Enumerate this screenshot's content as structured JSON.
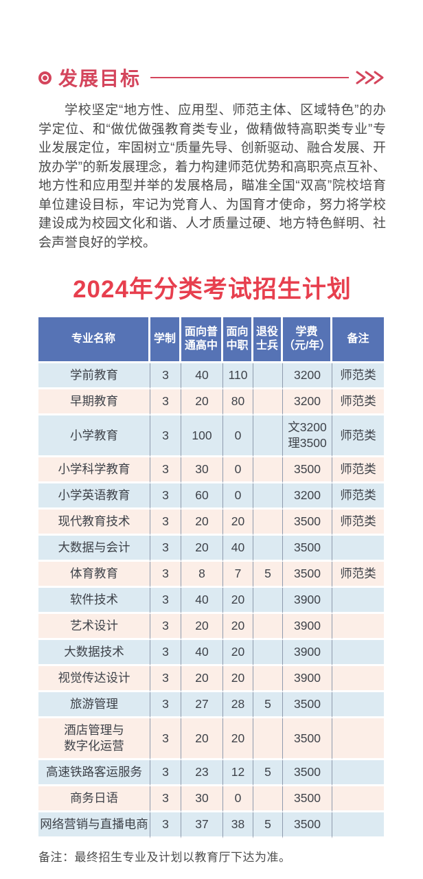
{
  "page": {
    "section_title": "发展目标",
    "intro_paragraph": "学校坚定“地方性、应用型、师范主体、区域特色”的办学定位、和“做优做强教育类专业，做精做特高职类专业”专业发展定位，牢固树立“质量先导、创新驱动、融合发展、开放办学”的新发展理念，着力构建师范优势和高职亮点互补、地方性和应用型并举的发展格局，瞄准全国“双高”院校培育单位建设目标，牢记为党育人、为国育才使命，努力将学校建设成为校园文化和谐、人才质量过硬、地方特色鲜明、社会声誉良好的学校。",
    "plan_title": "2024年分类考试招生计划",
    "note": "备注：最终招生专业及计划以教育厅下达为准。"
  },
  "icons": {
    "section_bullet": "bullseye-icon",
    "section_arrow": "triple-chevron-right-icon"
  },
  "colors": {
    "accent_crimson": "#d4455c",
    "title_red": "#e73f4e",
    "header_blue": "#5673b5",
    "row_blue": "#dceaf2",
    "row_pink": "#fceee7",
    "cell_divider": "#8e9aad",
    "body_text": "#4a4a4a"
  },
  "table": {
    "headers": [
      "专业名称",
      "学制",
      "面向普\n通高中",
      "面向\n中职",
      "退役\n士兵",
      "学费\n（元/年）",
      "备注"
    ],
    "rows": [
      [
        "学前教育",
        "3",
        "40",
        "110",
        "",
        "3200",
        "师范类"
      ],
      [
        "早期教育",
        "3",
        "20",
        "80",
        "",
        "3200",
        "师范类"
      ],
      [
        "小学教育",
        "3",
        "100",
        "0",
        "",
        "文3200\n理3500",
        "师范类"
      ],
      [
        "小学科学教育",
        "3",
        "30",
        "0",
        "",
        "3500",
        "师范类"
      ],
      [
        "小学英语教育",
        "3",
        "60",
        "0",
        "",
        "3200",
        "师范类"
      ],
      [
        "现代教育技术",
        "3",
        "20",
        "20",
        "",
        "3500",
        "师范类"
      ],
      [
        "大数据与会计",
        "3",
        "20",
        "40",
        "",
        "3500",
        ""
      ],
      [
        "体育教育",
        "3",
        "8",
        "7",
        "5",
        "3500",
        "师范类"
      ],
      [
        "软件技术",
        "3",
        "40",
        "20",
        "",
        "3900",
        ""
      ],
      [
        "艺术设计",
        "3",
        "20",
        "20",
        "",
        "3900",
        ""
      ],
      [
        "大数据技术",
        "3",
        "40",
        "20",
        "",
        "3900",
        ""
      ],
      [
        "视觉传达设计",
        "3",
        "20",
        "20",
        "",
        "3900",
        ""
      ],
      [
        "旅游管理",
        "3",
        "27",
        "28",
        "5",
        "3500",
        ""
      ],
      [
        "酒店管理与\n数字化运营",
        "3",
        "20",
        "20",
        "",
        "3500",
        ""
      ],
      [
        "高速铁路客运服务",
        "3",
        "23",
        "12",
        "5",
        "3500",
        ""
      ],
      [
        "商务日语",
        "3",
        "30",
        "0",
        "",
        "3500",
        ""
      ],
      [
        "网络营销与直播电商",
        "3",
        "37",
        "38",
        "5",
        "3500",
        ""
      ]
    ]
  }
}
